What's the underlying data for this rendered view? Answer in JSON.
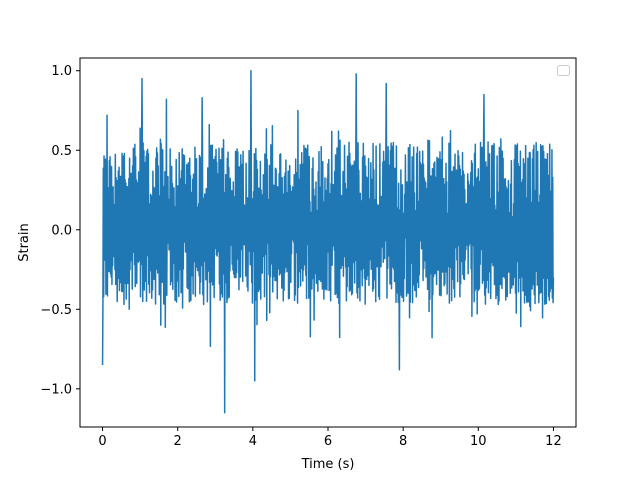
{
  "chart_data": {
    "type": "line",
    "title": "",
    "xlabel": "Time (s)",
    "ylabel": "Strain",
    "xlim": [
      -0.6,
      12.6
    ],
    "ylim": [
      -1.24,
      1.08
    ],
    "xticks": [
      0,
      2,
      4,
      6,
      8,
      10,
      12
    ],
    "xtick_labels": [
      "0",
      "2",
      "4",
      "6",
      "8",
      "10",
      "12"
    ],
    "yticks": [
      -1.0,
      -0.5,
      0.0,
      0.5,
      1.0
    ],
    "ytick_labels": [
      "−1.0",
      "−0.5",
      "0.0",
      "0.5",
      "1.0"
    ],
    "grid": false,
    "legend": {
      "location": "upper right",
      "entries": []
    },
    "series": [
      {
        "color": "#1f77b4",
        "x_range": [
          0,
          12
        ],
        "sample_count": 1200,
        "description": "dense noisy strain signal, roughly -0.4..0.6 envelope",
        "notable_points": [
          {
            "x": 0.0,
            "y": -0.85
          },
          {
            "x": 0.12,
            "y": 0.72
          },
          {
            "x": 1.05,
            "y": 0.95
          },
          {
            "x": 1.7,
            "y": 0.82
          },
          {
            "x": 2.65,
            "y": 0.83
          },
          {
            "x": 3.25,
            "y": -1.15
          },
          {
            "x": 3.95,
            "y": 1.0
          },
          {
            "x": 4.05,
            "y": -0.95
          },
          {
            "x": 5.2,
            "y": 0.75
          },
          {
            "x": 6.75,
            "y": 0.98
          },
          {
            "x": 7.55,
            "y": 0.92
          },
          {
            "x": 7.9,
            "y": -0.88
          },
          {
            "x": 10.15,
            "y": 0.85
          },
          {
            "x": 12.0,
            "y": -0.3
          }
        ]
      }
    ]
  }
}
